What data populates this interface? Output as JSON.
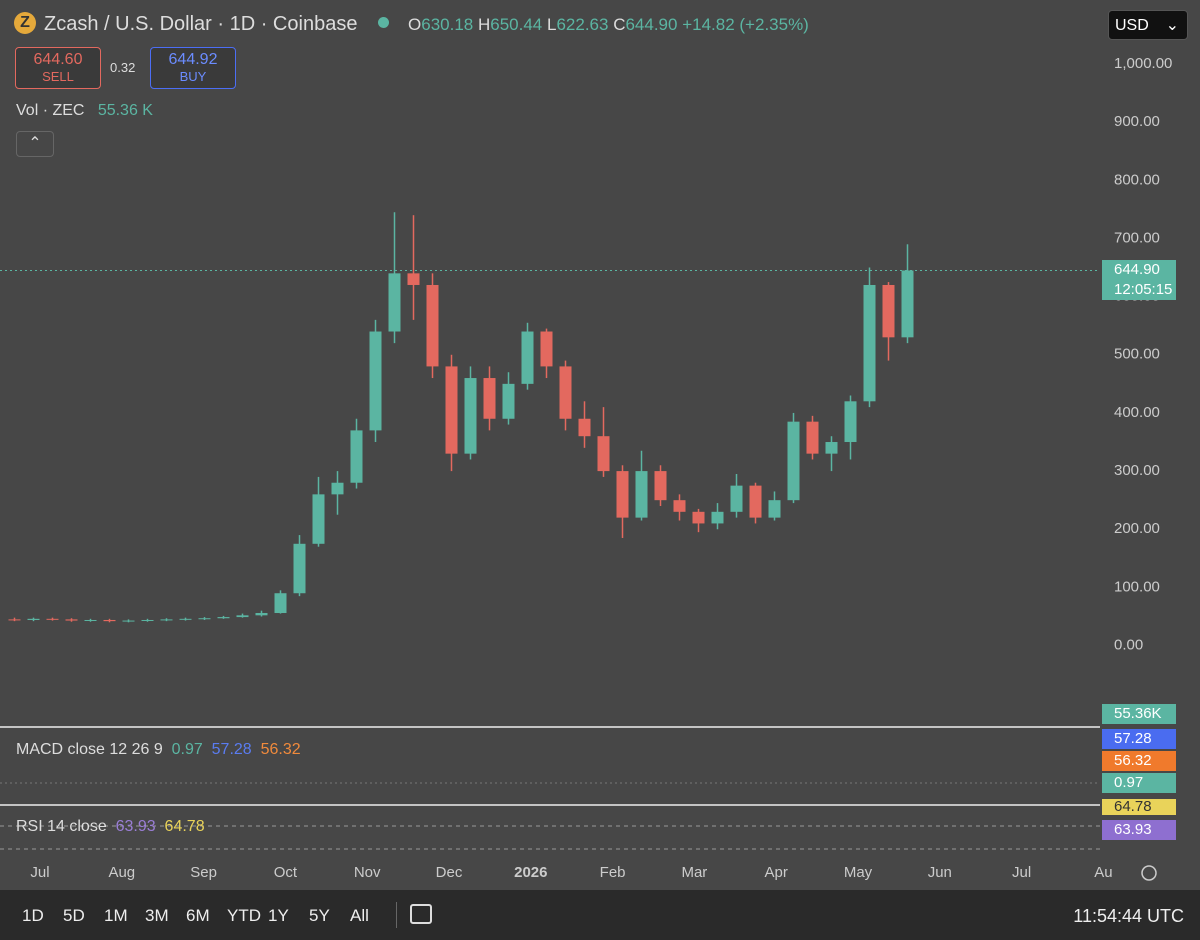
{
  "header": {
    "title": "Zcash / U.S. Dollar · 1D · Coinbase",
    "o_label": "O",
    "open": "630.18",
    "h_label": "H",
    "high": "650.44",
    "l_label": "L",
    "low": "622.63",
    "c_label": "C",
    "close": "644.90",
    "change": "+14.82 (+2.35%)",
    "currency": "USD"
  },
  "trade": {
    "sell_price": "644.60",
    "sell": "SELL",
    "spread": "0.32",
    "buy_price": "644.92",
    "buy": "BUY"
  },
  "volume": {
    "label": "Vol · ZEC",
    "value": "55.36 K",
    "axis_value": "55.36K"
  },
  "macd": {
    "label": "MACD close 12 26 9",
    "hist": "0.97",
    "macd": "57.28",
    "signal": "56.32"
  },
  "rsi": {
    "label": "RSI 14 close",
    "rsi": "63.93",
    "ma": "64.78"
  },
  "price_label": {
    "price": "644.90",
    "countdown": "12:05:15"
  },
  "toolbar": {
    "ranges": [
      "1D",
      "5D",
      "1M",
      "3M",
      "6M",
      "YTD",
      "1Y",
      "5Y",
      "All"
    ],
    "time": "11:54:44 UTC"
  },
  "chart_data": {
    "type": "candlestick",
    "up_color": "#5bb5a2",
    "down_color": "#e3695f",
    "x_axis_labels": [
      "Jul",
      "Aug",
      "Sep",
      "Oct",
      "Nov",
      "Dec",
      "2026",
      "Feb",
      "Mar",
      "Apr",
      "May",
      "Jun",
      "Jul",
      "Au"
    ],
    "ylim": [
      -140,
      1110
    ],
    "yticks": [
      {
        "value": 0,
        "label": "0.00"
      },
      {
        "value": 100,
        "label": "100.00"
      },
      {
        "value": 200,
        "label": "200.00"
      },
      {
        "value": 300,
        "label": "300.00"
      },
      {
        "value": 400,
        "label": "400.00"
      },
      {
        "value": 500,
        "label": "500.00"
      },
      {
        "value": 600,
        "label": "600.00"
      },
      {
        "value": 700,
        "label": "700.00"
      },
      {
        "value": 800,
        "label": "800.00"
      },
      {
        "value": 900,
        "label": "900.00"
      },
      {
        "value": 1000,
        "label": "1,000.00"
      }
    ],
    "last_price": 644.9,
    "open": [
      45,
      44,
      46,
      45,
      43,
      44,
      42,
      43,
      44,
      45,
      46,
      47,
      49,
      52,
      56,
      90,
      175,
      260,
      280,
      370,
      540,
      640,
      620,
      480,
      330,
      460,
      390,
      450,
      540,
      480,
      390,
      360,
      300,
      220,
      300,
      250,
      230,
      210,
      230,
      275,
      220,
      250,
      385,
      330,
      350,
      420,
      620,
      530
    ],
    "high": [
      48,
      48,
      48,
      47,
      46,
      46,
      45,
      46,
      47,
      48,
      49,
      51,
      55,
      60,
      95,
      190,
      290,
      300,
      390,
      560,
      745,
      740,
      640,
      500,
      480,
      480,
      470,
      555,
      545,
      490,
      420,
      410,
      310,
      335,
      310,
      260,
      235,
      245,
      295,
      280,
      265,
      400,
      395,
      360,
      430,
      650,
      625,
      690
    ],
    "low": [
      42,
      42,
      43,
      41,
      41,
      40,
      40,
      41,
      42,
      43,
      44,
      46,
      48,
      50,
      55,
      85,
      170,
      225,
      270,
      350,
      520,
      560,
      460,
      300,
      320,
      370,
      380,
      440,
      460,
      370,
      340,
      290,
      185,
      215,
      240,
      215,
      195,
      200,
      220,
      210,
      215,
      245,
      320,
      300,
      320,
      410,
      490,
      520
    ],
    "close": [
      44,
      46,
      45,
      43,
      44,
      42,
      43,
      44,
      45,
      46,
      47,
      49,
      52,
      56,
      90,
      175,
      260,
      280,
      370,
      540,
      640,
      620,
      480,
      330,
      460,
      390,
      450,
      540,
      480,
      390,
      360,
      300,
      220,
      300,
      250,
      230,
      210,
      230,
      275,
      220,
      250,
      385,
      330,
      350,
      420,
      620,
      530,
      644.9
    ]
  }
}
